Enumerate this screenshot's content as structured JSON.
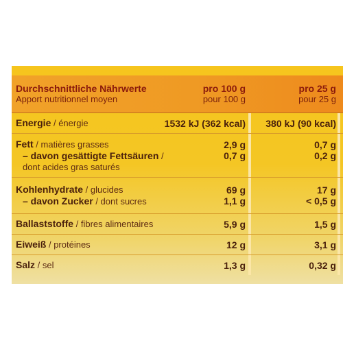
{
  "header": {
    "title_de": "Durchschnittliche Nährwerte",
    "title_fr": "Apport nutritionnel moyen",
    "col1_de": "pro 100 g",
    "col1_fr": "pour 100 g",
    "col2_de": "pro 25 g",
    "col2_fr": "pour 25 g"
  },
  "rows": [
    {
      "lines": [
        {
          "de": "Energie",
          "fr": " / énergie",
          "v100": "1532 kJ (362 kcal)",
          "v25": "380 kJ (90 kcal)"
        }
      ]
    },
    {
      "lines": [
        {
          "de": "Fett",
          "fr": " / matières grasses",
          "v100": "2,9 g",
          "v25": "0,7 g"
        },
        {
          "de": "– davon gesättigte Fettsäuren",
          "fr": " /",
          "v100": "0,7 g",
          "v25": "0,2 g"
        },
        {
          "de": "",
          "fr": "dont acides gras saturés",
          "v100": "",
          "v25": ""
        }
      ]
    },
    {
      "lines": [
        {
          "de": "Kohlenhydrate",
          "fr": " / glucides",
          "v100": "69 g",
          "v25": "17 g"
        },
        {
          "de": "– davon Zucker",
          "fr": " / dont sucres",
          "v100": "1,1 g",
          "v25": "< 0,5 g"
        }
      ]
    },
    {
      "lines": [
        {
          "de": "Ballaststoffe",
          "fr": " / fibres alimentaires",
          "v100": "5,9 g",
          "v25": "1,5 g"
        }
      ]
    },
    {
      "lines": [
        {
          "de": "Eiweiß",
          "fr": " / protéines",
          "v100": "12 g",
          "v25": "3,1 g"
        }
      ]
    },
    {
      "lines": [
        {
          "de": "Salz",
          "fr": " / sel",
          "v100": "1,3 g",
          "v25": "0,32 g"
        }
      ]
    }
  ]
}
